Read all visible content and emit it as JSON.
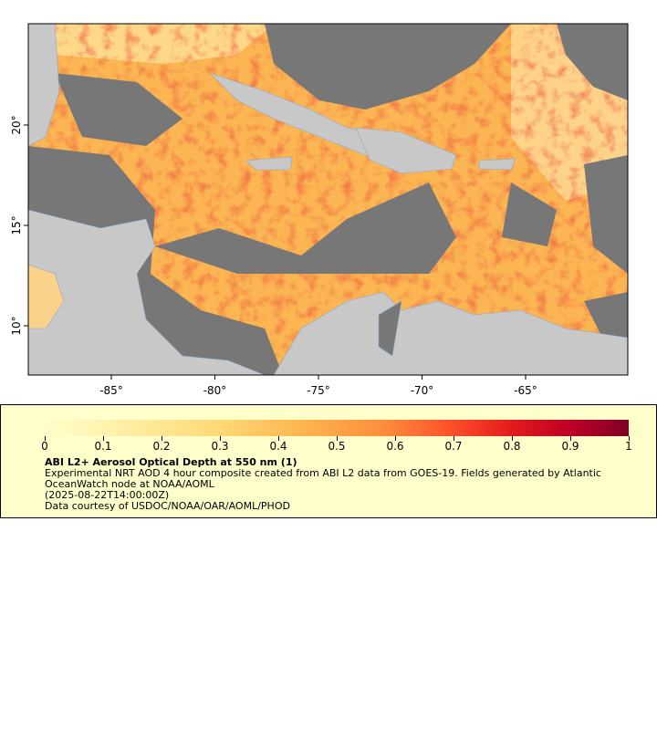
{
  "map": {
    "xticks": [
      {
        "value": -85,
        "label": "-85°"
      },
      {
        "value": -80,
        "label": "-80°"
      },
      {
        "value": -75,
        "label": "-75°"
      },
      {
        "value": -70,
        "label": "-70°"
      },
      {
        "value": -65,
        "label": "-65°"
      }
    ],
    "yticks": [
      {
        "value": 10,
        "label": "10°"
      },
      {
        "value": 15,
        "label": "15°"
      },
      {
        "value": 20,
        "label": "20°"
      }
    ]
  },
  "colorbar": {
    "ticks": [
      0,
      0.1,
      0.2,
      0.3,
      0.4,
      0.5,
      0.6,
      0.7,
      0.8,
      0.9,
      1
    ]
  },
  "legend": {
    "title": "ABI L2+ Aerosol Optical Depth at 550 nm (1)",
    "description": "Experimental NRT AOD 4 hour composite created from ABI L2 data from GOES-19. Fields generated by Atlantic OceanWatch node at NOAA/AOML",
    "time": "(2025-08-22T14:00:00Z)",
    "credit": "Data courtesy of USDOC/NOAA/OAR/AOML/PHOD"
  }
}
